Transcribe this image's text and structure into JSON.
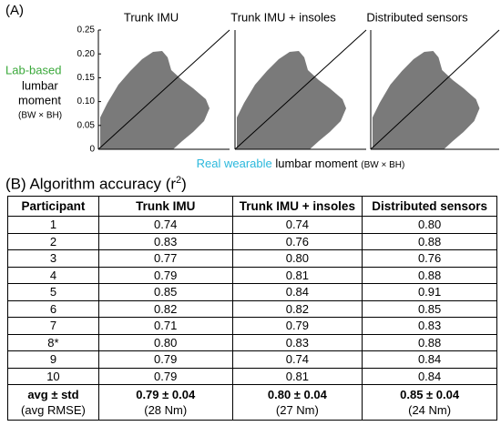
{
  "panel_a": {
    "label": "(A)",
    "plot_titles": [
      "Trunk IMU",
      "Trunk IMU + insoles",
      "Distributed sensors"
    ],
    "y_label": {
      "highlight": "Lab-based",
      "lines": [
        "lumbar",
        "moment"
      ],
      "units": "(BW × BH)"
    },
    "x_label": {
      "highlight": "Real wearable",
      "text": "lumbar moment",
      "units": "(BW × BH)"
    },
    "ylim": [
      0,
      0.25
    ],
    "yticks": [
      0,
      0.05,
      {
        "value": 0.1,
        "label": "0.10"
      },
      0.15,
      {
        "value": 0.2,
        "label": "0.20"
      },
      0.25
    ]
  },
  "panel_b": {
    "title": "(B) Algorithm accuracy (r",
    "title_sup": "2",
    "title_end": ")",
    "table": {
      "header": [
        "Participant",
        "Trunk IMU",
        "Trunk IMU + insoles",
        "Distributed sensors"
      ],
      "rows": [
        [
          "1",
          "0.74",
          "0.74",
          "0.80"
        ],
        [
          "2",
          "0.83",
          "0.76",
          "0.88"
        ],
        [
          "3",
          "0.77",
          "0.80",
          "0.76"
        ],
        [
          "4",
          "0.79",
          "0.81",
          "0.88"
        ],
        [
          "5",
          "0.85",
          "0.84",
          "0.91"
        ],
        [
          "6",
          "0.82",
          "0.82",
          "0.85"
        ],
        [
          "7",
          "0.71",
          "0.79",
          "0.83"
        ],
        [
          "8*",
          "0.80",
          "0.83",
          "0.88"
        ],
        [
          "9",
          "0.79",
          "0.74",
          "0.84"
        ],
        [
          "10",
          "0.79",
          "0.81",
          "0.84"
        ]
      ],
      "summary": [
        {
          "main": "avg ± std",
          "sub": "(avg RMSE)"
        },
        {
          "main": "0.79 ± 0.04",
          "sub": "(28 Nm)"
        },
        {
          "main": "0.80 ± 0.04",
          "sub": "(27 Nm)"
        },
        {
          "main": "0.85 ± 0.04",
          "sub": "(24 Nm)"
        }
      ]
    }
  }
}
